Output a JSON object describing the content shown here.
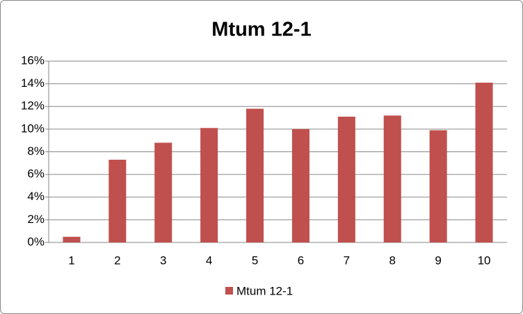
{
  "chart_data": {
    "type": "bar",
    "title": "Mtum 12-1",
    "categories": [
      "1",
      "2",
      "3",
      "4",
      "5",
      "6",
      "7",
      "8",
      "9",
      "10"
    ],
    "series": [
      {
        "name": "Mtum 12-1",
        "color": "#c0504d",
        "values": [
          0.5,
          7.3,
          8.8,
          10.1,
          11.8,
          10.0,
          11.1,
          11.2,
          9.9,
          14.1
        ]
      }
    ],
    "ylim": [
      0,
      16
    ],
    "yticks": [
      {
        "value": 0,
        "label": "0%"
      },
      {
        "value": 2,
        "label": "2%"
      },
      {
        "value": 4,
        "label": "4%"
      },
      {
        "value": 6,
        "label": "6%"
      },
      {
        "value": 8,
        "label": "8%"
      },
      {
        "value": 10,
        "label": "10%"
      },
      {
        "value": 12,
        "label": "12%"
      },
      {
        "value": 14,
        "label": "14%"
      },
      {
        "value": 16,
        "label": "16%"
      }
    ],
    "grid": true,
    "legend": "bottom"
  }
}
